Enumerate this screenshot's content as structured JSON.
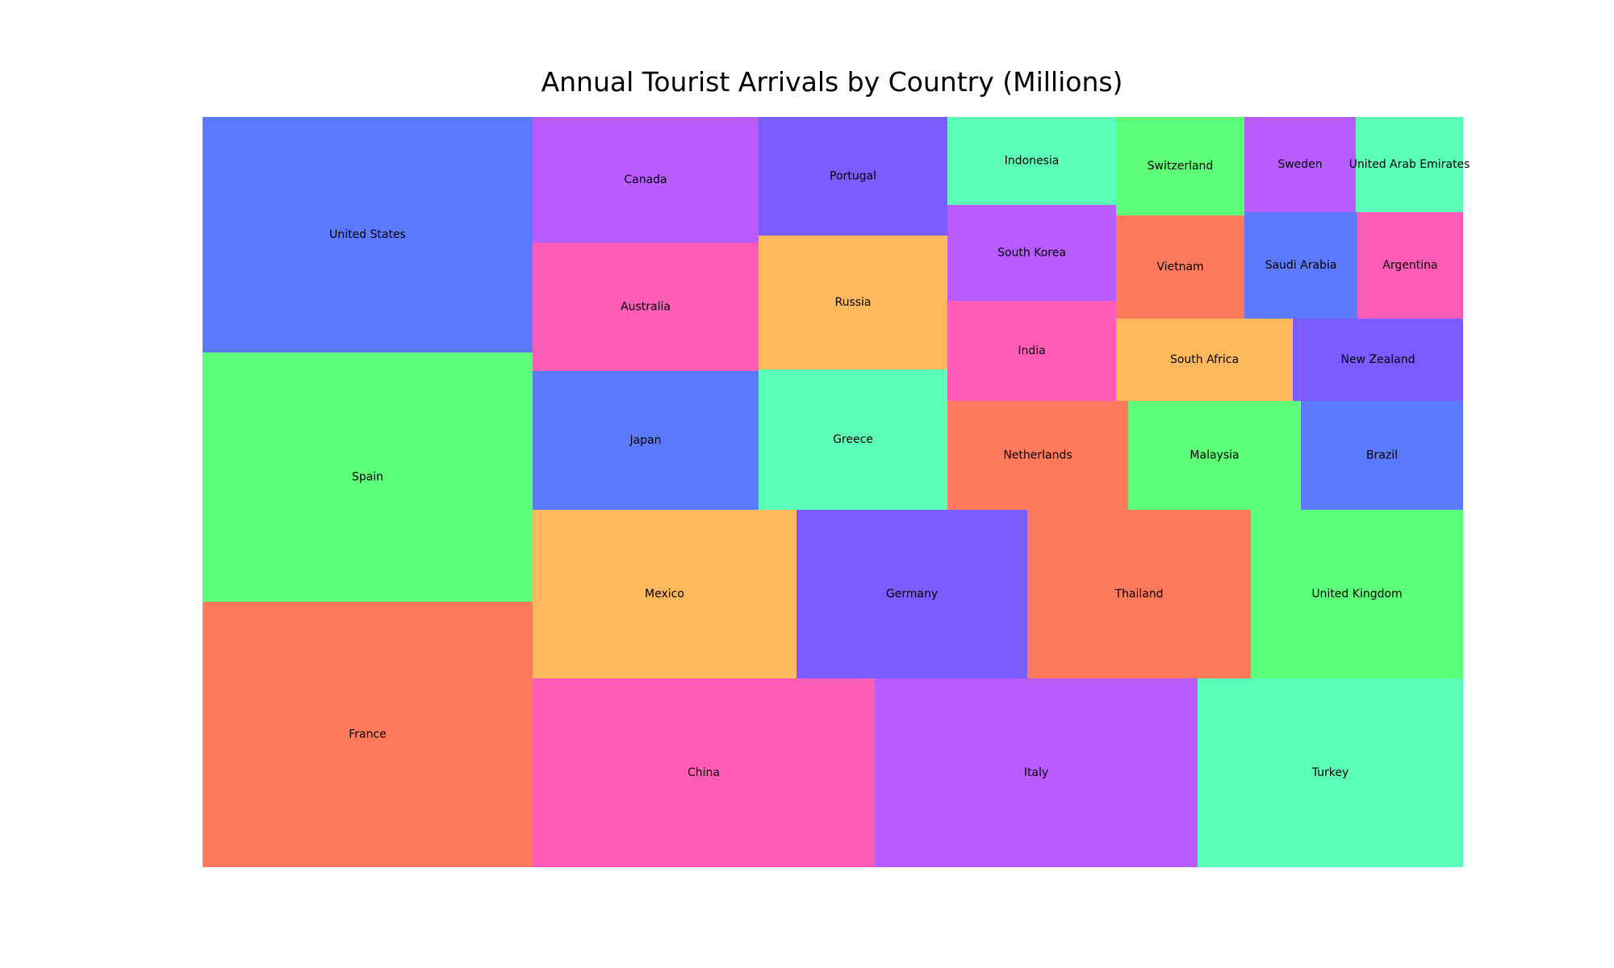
{
  "chart_data": {
    "type": "treemap",
    "title": "Annual Tourist Arrivals by Country (Millions)",
    "items": [
      {
        "label": "France",
        "value": 89.4,
        "color": "#FF7A5C"
      },
      {
        "label": "Spain",
        "value": 83.7,
        "color": "#5CFF77"
      },
      {
        "label": "United States",
        "value": 79.3,
        "color": "#5C7AFF"
      },
      {
        "label": "China",
        "value": 65.7,
        "color": "#FF5CB8"
      },
      {
        "label": "Italy",
        "value": 62.1,
        "color": "#B85CFF"
      },
      {
        "label": "Turkey",
        "value": 51.2,
        "color": "#5CFFB8"
      },
      {
        "label": "Mexico",
        "value": 45.0,
        "color": "#FFB85C"
      },
      {
        "label": "Germany",
        "value": 39.6,
        "color": "#7A5CFF"
      },
      {
        "label": "Thailand",
        "value": 38.3,
        "color": "#FF7A5C"
      },
      {
        "label": "United Kingdom",
        "value": 36.3,
        "color": "#5CFF77"
      },
      {
        "label": "Japan",
        "value": 31.9,
        "color": "#5C7AFF"
      },
      {
        "label": "Australia",
        "value": 29.5,
        "color": "#FF5CB8"
      },
      {
        "label": "Canada",
        "value": 29.0,
        "color": "#B85CFF"
      },
      {
        "label": "Greece",
        "value": 31.3,
        "color": "#5CFFB8"
      },
      {
        "label": "Russia",
        "value": 29.7,
        "color": "#FFB85C"
      },
      {
        "label": "Portugal",
        "value": 26.3,
        "color": "#7A5CFF"
      },
      {
        "label": "Netherlands",
        "value": 20.1,
        "color": "#FF7A5C"
      },
      {
        "label": "Malaysia",
        "value": 19.3,
        "color": "#5CFF77"
      },
      {
        "label": "Brazil",
        "value": 18.0,
        "color": "#5C7AFF"
      },
      {
        "label": "India",
        "value": 17.9,
        "color": "#FF5CB8"
      },
      {
        "label": "South Korea",
        "value": 17.5,
        "color": "#B85CFF"
      },
      {
        "label": "Indonesia",
        "value": 16.1,
        "color": "#5CFFB8"
      },
      {
        "label": "South Africa",
        "value": 15.3,
        "color": "#FFB85C"
      },
      {
        "label": "New Zealand",
        "value": 14.9,
        "color": "#7A5CFF"
      },
      {
        "label": "Vietnam",
        "value": 14.1,
        "color": "#FF7A5C"
      },
      {
        "label": "Switzerland",
        "value": 13.5,
        "color": "#5CFF77"
      },
      {
        "label": "Saudi Arabia",
        "value": 12.6,
        "color": "#5C7AFF"
      },
      {
        "label": "Argentina",
        "value": 12.1,
        "color": "#FF5CB8"
      },
      {
        "label": "Sweden",
        "value": 11.8,
        "color": "#B85CFF"
      },
      {
        "label": "United Arab Emirates",
        "value": 11.1,
        "color": "#5CFFB8"
      }
    ]
  }
}
